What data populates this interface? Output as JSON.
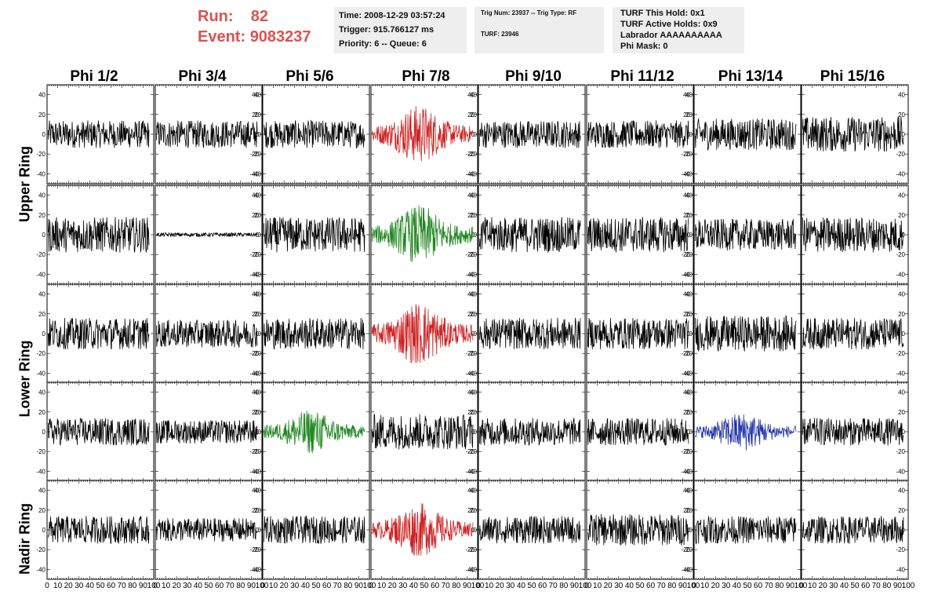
{
  "header": {
    "run_label": "Run:",
    "run_value": "82",
    "event_label": "Event:",
    "event_value": "9083237",
    "accent_color": "#d9534f"
  },
  "time_box": {
    "time": "Time: 2008-12-29 03:57:24",
    "trigger": "Trigger: 915.766127 ms",
    "priority": "Priority: 6 -- Queue: 6"
  },
  "trig_box": {
    "trig": "Trig Num: 23937 -- Trig Type: RF",
    "turf": "TURF: 23946"
  },
  "turf_box": {
    "this_hold": "TURF This Hold: 0x1",
    "active_holds": "TURF Active Holds: 0x9",
    "labrador": "Labrador AAAAAAAAAA",
    "phi_mask": "Phi Mask: 0"
  },
  "columns": [
    "Phi 1/2",
    "Phi 3/4",
    "Phi 5/6",
    "Phi 7/8",
    "Phi 9/10",
    "Phi 11/12",
    "Phi 13/14",
    "Phi 15/16"
  ],
  "rings": [
    "Upper Ring",
    "Lower Ring",
    "Nadir Ring"
  ],
  "chart_data": {
    "type": "line",
    "description_rows": 5,
    "xlim": [
      0,
      100
    ],
    "ylim": [
      -50,
      50
    ],
    "xticks": [
      "0",
      "10",
      "20",
      "30",
      "40",
      "50",
      "60",
      "70",
      "80",
      "90",
      "100"
    ],
    "yticks": [
      "40",
      "20",
      "0",
      "-20",
      "-40"
    ],
    "trace_colors": {
      "normal": "#000000",
      "red": "#cc2222",
      "green": "#228822",
      "blue": "#2233aa"
    },
    "panels": [
      [
        "k",
        "k",
        "k",
        "r",
        "k",
        "k",
        "k",
        "k"
      ],
      [
        "k",
        "flat",
        "k",
        "g",
        "k",
        "k",
        "k",
        "k"
      ],
      [
        "k",
        "k",
        "k",
        "r",
        "k",
        "k",
        "k",
        "k"
      ],
      [
        "k",
        "k",
        "g",
        "k",
        "k",
        "k",
        "b",
        "k"
      ],
      [
        "k",
        "k",
        "k",
        "r",
        "k",
        "k",
        "k",
        "k"
      ]
    ],
    "amplitudes": [
      [
        14,
        14,
        14,
        24,
        14,
        14,
        16,
        18
      ],
      [
        18,
        2,
        18,
        24,
        18,
        18,
        16,
        18
      ],
      [
        16,
        14,
        16,
        26,
        16,
        16,
        18,
        16
      ],
      [
        14,
        12,
        18,
        18,
        14,
        14,
        16,
        14
      ],
      [
        14,
        12,
        14,
        22,
        14,
        16,
        14,
        14
      ]
    ]
  }
}
